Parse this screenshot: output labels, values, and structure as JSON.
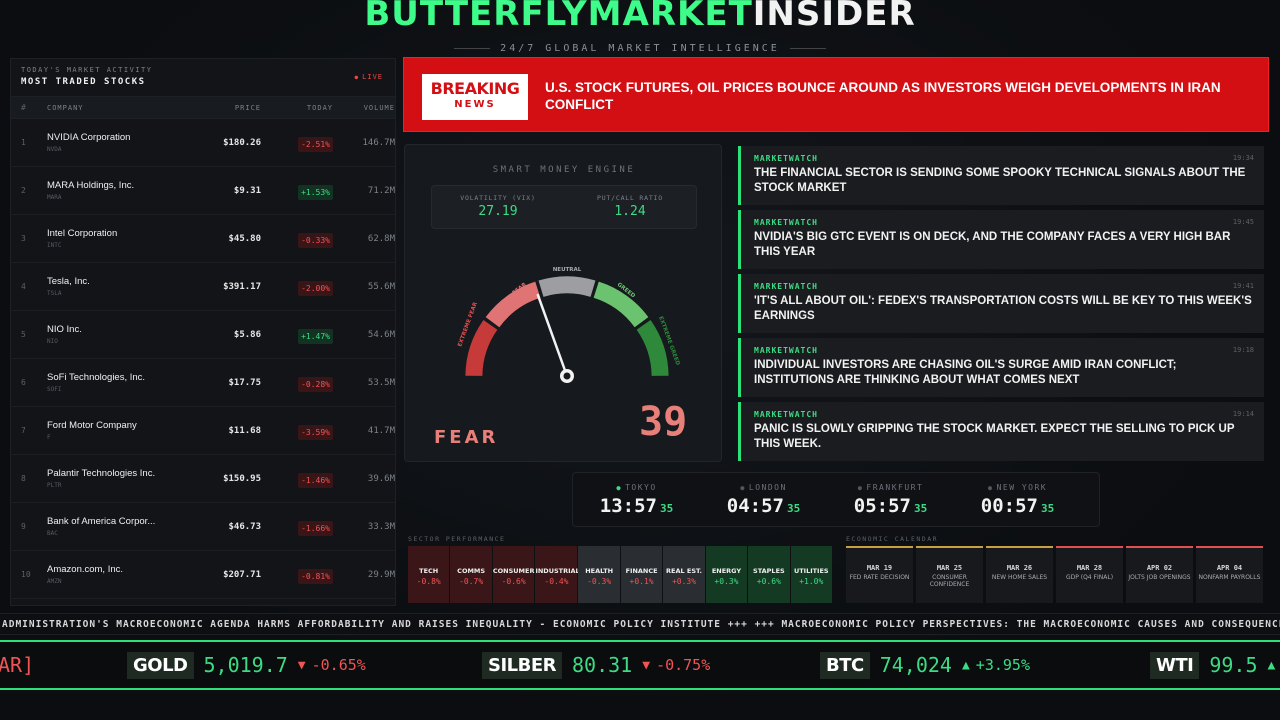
{
  "header": {
    "brand_green": "BUTTERFLYMARKET",
    "brand_white": "INSIDER",
    "tagline": "24/7 GLOBAL MARKET INTELLIGENCE"
  },
  "stocks": {
    "kicker": "TODAY'S MARKET ACTIVITY",
    "title": "MOST TRADED STOCKS",
    "live": "LIVE",
    "columns": [
      "#",
      "COMPANY",
      "PRICE",
      "TODAY",
      "VOLUME"
    ],
    "rows": [
      {
        "rank": "1",
        "name": "NVIDIA Corporation",
        "ticker": "NVDA",
        "price": "$180.26",
        "change": "-2.51%",
        "dir": "neg",
        "volume": "146.7M"
      },
      {
        "rank": "2",
        "name": "MARA Holdings, Inc.",
        "ticker": "MARA",
        "price": "$9.31",
        "change": "+1.53%",
        "dir": "pos",
        "volume": "71.2M"
      },
      {
        "rank": "3",
        "name": "Intel Corporation",
        "ticker": "INTC",
        "price": "$45.80",
        "change": "-0.33%",
        "dir": "neg",
        "volume": "62.8M"
      },
      {
        "rank": "4",
        "name": "Tesla, Inc.",
        "ticker": "TSLA",
        "price": "$391.17",
        "change": "-2.00%",
        "dir": "neg",
        "volume": "55.6M"
      },
      {
        "rank": "5",
        "name": "NIO Inc.",
        "ticker": "NIO",
        "price": "$5.86",
        "change": "+1.47%",
        "dir": "pos",
        "volume": "54.6M"
      },
      {
        "rank": "6",
        "name": "SoFi Technologies, Inc.",
        "ticker": "SOFI",
        "price": "$17.75",
        "change": "-0.28%",
        "dir": "neg",
        "volume": "53.5M"
      },
      {
        "rank": "7",
        "name": "Ford Motor Company",
        "ticker": "F",
        "price": "$11.68",
        "change": "-3.59%",
        "dir": "neg",
        "volume": "41.7M"
      },
      {
        "rank": "8",
        "name": "Palantir Technologies Inc.",
        "ticker": "PLTR",
        "price": "$150.95",
        "change": "-1.46%",
        "dir": "neg",
        "volume": "39.6M"
      },
      {
        "rank": "9",
        "name": "Bank of America Corpor...",
        "ticker": "BAC",
        "price": "$46.73",
        "change": "-1.66%",
        "dir": "neg",
        "volume": "33.3M"
      },
      {
        "rank": "10",
        "name": "Amazon.com, Inc.",
        "ticker": "AMZN",
        "price": "$207.71",
        "change": "-0.81%",
        "dir": "neg",
        "volume": "29.9M"
      }
    ]
  },
  "breaking": {
    "badge_top": "BREAKING",
    "badge_bottom": "NEWS",
    "headline": "U.S. STOCK FUTURES, OIL PRICES BOUNCE AROUND AS INVESTORS WEIGH DEVELOPMENTS IN IRAN CONFLICT",
    "bg_color": "#d30f13"
  },
  "gauge": {
    "title": "SMART MONEY ENGINE",
    "vix_label": "VOLATILITY (VIX)",
    "vix_value": "27.19",
    "pc_label": "PUT/CALL RATIO",
    "pc_value": "1.24",
    "zones": [
      "EXTREME FEAR",
      "FEAR",
      "NEUTRAL",
      "GREED",
      "EXTREME GREED"
    ],
    "sentiment": "FEAR",
    "score": "39",
    "score_value": 39
  },
  "news": [
    {
      "source": "MARKETWATCH",
      "time": "19:34",
      "headline": "THE FINANCIAL SECTOR IS SENDING SOME SPOOKY TECHNICAL SIGNALS ABOUT THE STOCK MARKET"
    },
    {
      "source": "MARKETWATCH",
      "time": "19:45",
      "headline": "NVIDIA'S BIG GTC EVENT IS ON DECK, AND THE COMPANY FACES A VERY HIGH BAR THIS YEAR"
    },
    {
      "source": "MARKETWATCH",
      "time": "19:41",
      "headline": "'IT'S ALL ABOUT OIL': FEDEX'S TRANSPORTATION COSTS WILL BE KEY TO THIS WEEK'S EARNINGS"
    },
    {
      "source": "MARKETWATCH",
      "time": "19:18",
      "headline": "INDIVIDUAL INVESTORS ARE CHASING OIL'S SURGE AMID IRAN CONFLICT; INSTITUTIONS ARE THINKING ABOUT WHAT COMES NEXT"
    },
    {
      "source": "MARKETWATCH",
      "time": "19:14",
      "headline": "PANIC IS SLOWLY GRIPPING THE STOCK MARKET. EXPECT THE SELLING TO PICK UP THIS WEEK."
    }
  ],
  "clocks": [
    {
      "city": "TOKYO",
      "time": "13:57",
      "sec": "35",
      "open": true
    },
    {
      "city": "LONDON",
      "time": "04:57",
      "sec": "35",
      "open": false
    },
    {
      "city": "FRANKFURT",
      "time": "05:57",
      "sec": "35",
      "open": false
    },
    {
      "city": "NEW YORK",
      "time": "00:57",
      "sec": "35",
      "open": false
    }
  ],
  "sectors": {
    "title": "SECTOR PERFORMANCE",
    "items": [
      {
        "name": "TECH",
        "change": "-0.8%",
        "dir": "n"
      },
      {
        "name": "COMMS",
        "change": "-0.7%",
        "dir": "n"
      },
      {
        "name": "CONSUMER",
        "change": "-0.6%",
        "dir": "n"
      },
      {
        "name": "INDUSTRIAL",
        "change": "-0.4%",
        "dir": "n"
      },
      {
        "name": "HEALTH",
        "change": "-0.3%",
        "dir": "z"
      },
      {
        "name": "FINANCE",
        "change": "+0.1%",
        "dir": "z"
      },
      {
        "name": "REAL EST.",
        "change": "+0.3%",
        "dir": "z"
      },
      {
        "name": "ENERGY",
        "change": "+0.3%",
        "dir": "p"
      },
      {
        "name": "STAPLES",
        "change": "+0.6%",
        "dir": "p"
      },
      {
        "name": "UTILITIES",
        "change": "+1.0%",
        "dir": "p"
      }
    ]
  },
  "calendar": {
    "title": "ECONOMIC CALENDAR",
    "events": [
      {
        "date": "MAR 19",
        "name": "FED RATE DECISION",
        "tone": "gold"
      },
      {
        "date": "MAR 25",
        "name": "CONSUMER CONFIDENCE",
        "tone": "gold"
      },
      {
        "date": "MAR 26",
        "name": "NEW HOME SALES",
        "tone": "gold"
      },
      {
        "date": "MAR 28",
        "name": "GDP (Q4 FINAL)",
        "tone": "red"
      },
      {
        "date": "APR 02",
        "name": "JOLTS JOB OPENINGS",
        "tone": "red"
      },
      {
        "date": "APR 04",
        "name": "NONFARM PAYROLLS",
        "tone": "red"
      }
    ]
  },
  "ticker_text": "ADMINISTRATION'S MACROECONOMIC AGENDA HARMS AFFORDABILITY AND RAISES INEQUALITY - ECONOMIC POLICY INSTITUTE +++ +++ MACROECONOMIC POLICY PERSPECTIVES: THE MACROECONOMIC CAUSES AND CONSEQUENCES OF",
  "commodities": {
    "fragment": "AR]",
    "items": [
      {
        "name": "GOLD",
        "value": "5,019.7",
        "arrow": "▼",
        "change": "-0.65%",
        "dir": "dn"
      },
      {
        "name": "SILBER",
        "value": "80.31",
        "arrow": "▼",
        "change": "-0.75%",
        "dir": "dn"
      },
      {
        "name": "BTC",
        "value": "74,024",
        "arrow": "▲",
        "change": "+3.95%",
        "dir": "up"
      },
      {
        "name": "WTI",
        "value": "99.5",
        "arrow": "▲",
        "change": "",
        "dir": "up"
      }
    ]
  }
}
